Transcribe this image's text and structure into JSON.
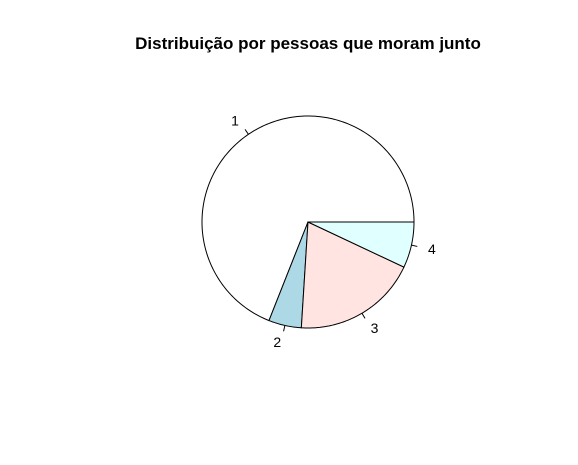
{
  "chart_data": {
    "type": "pie",
    "title": "Distribuição por pessoas que moram junto",
    "categories": [
      "1",
      "2",
      "3",
      "4"
    ],
    "values": [
      0.69,
      0.05,
      0.19,
      0.07
    ],
    "colors": [
      "#ffffff",
      "#add8e6",
      "#ffe4e1",
      "#e0ffff"
    ],
    "start_angle_deg": 0,
    "direction": "counterclockwise",
    "legend": "none"
  }
}
